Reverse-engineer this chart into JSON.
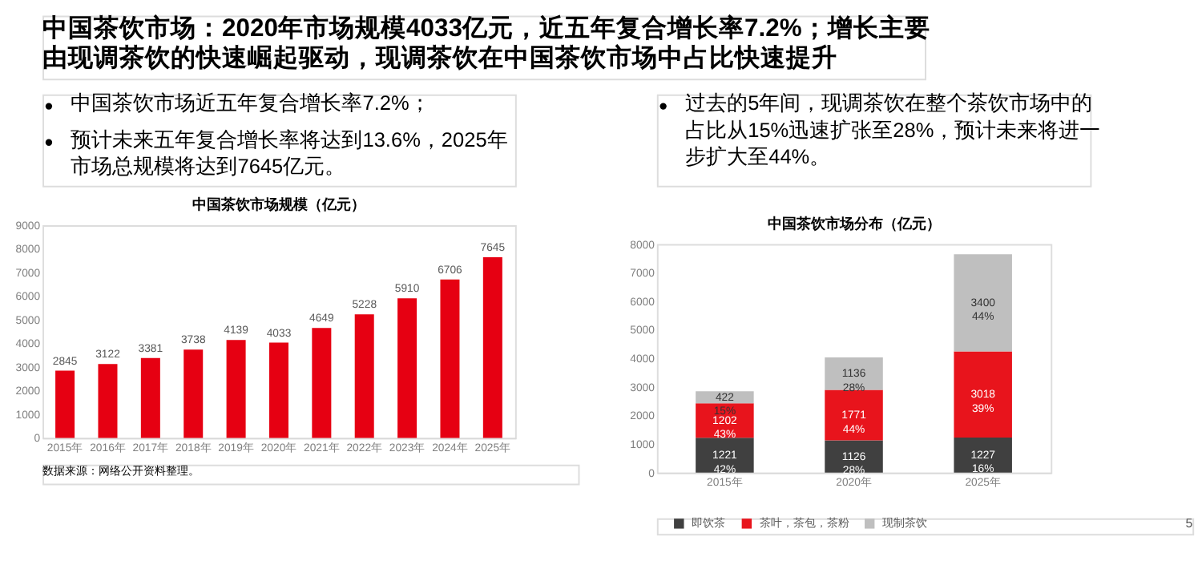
{
  "chart_data": [
    {
      "type": "bar",
      "title": "中国茶饮市场规模（亿元）",
      "categories": [
        "2015年",
        "2016年",
        "2017年",
        "2018年",
        "2019年",
        "2020年",
        "2021年",
        "2022年",
        "2023年",
        "2024年",
        "2025年"
      ],
      "values": [
        2845,
        3122,
        3381,
        3738,
        4139,
        4033,
        4649,
        5228,
        5910,
        6706,
        7645
      ],
      "color": "#e60012",
      "ylim": [
        0,
        9000
      ],
      "yticks": [
        0,
        1000,
        2000,
        3000,
        4000,
        5000,
        6000,
        7000,
        8000,
        9000
      ],
      "grid": false,
      "data_labels": true,
      "annotations": [
        "中国茶饮市场：2020年市场规模4033亿元，近五年复合增长率7.2%；增长主要由现调茶饮的快速崛起驱动，现调茶饮在中国茶饮市场中占比快速提升",
        "中国茶饮市场近五年复合增长率7.2%；",
        "预计未来五年复合增长率将达到13.6%，2025年市场总规模将达到7645亿元。",
        "数据来源：网络公开资料整理。"
      ]
    },
    {
      "type": "bar",
      "title": "中国茶饮市场分布（亿元）",
      "stacked": true,
      "categories": [
        "2015年",
        "2020年",
        "2025年"
      ],
      "series": [
        {
          "name": "即饮茶",
          "color": "#404040",
          "values": [
            1221,
            1126,
            1227
          ],
          "value_labels": [
            "1221\n42%",
            "1126\n28%",
            "1227\n16%"
          ]
        },
        {
          "name": "茶叶，茶包，茶粉",
          "color": "#e8141c",
          "values": [
            1202,
            1771,
            3018
          ],
          "value_labels": [
            "1202\n43%",
            "1771\n44%",
            "3018\n39%"
          ]
        },
        {
          "name": "现制茶饮",
          "color": "#bfbfbf",
          "values": [
            422,
            1136,
            3400
          ],
          "value_labels": [
            "422\n15%",
            "1136\n28%",
            "3400\n44%"
          ]
        }
      ],
      "ylim": [
        0,
        8000
      ],
      "yticks": [
        0,
        1000,
        2000,
        3000,
        4000,
        5000,
        6000,
        7000,
        8000
      ],
      "grid": false,
      "legend": "bottom",
      "annotations": [
        "过去的5年间，现调茶饮在整个茶饮市场中的占比从15%迅速扩张至28%，预计未来将进一步扩大至44%。",
        "5"
      ]
    }
  ]
}
